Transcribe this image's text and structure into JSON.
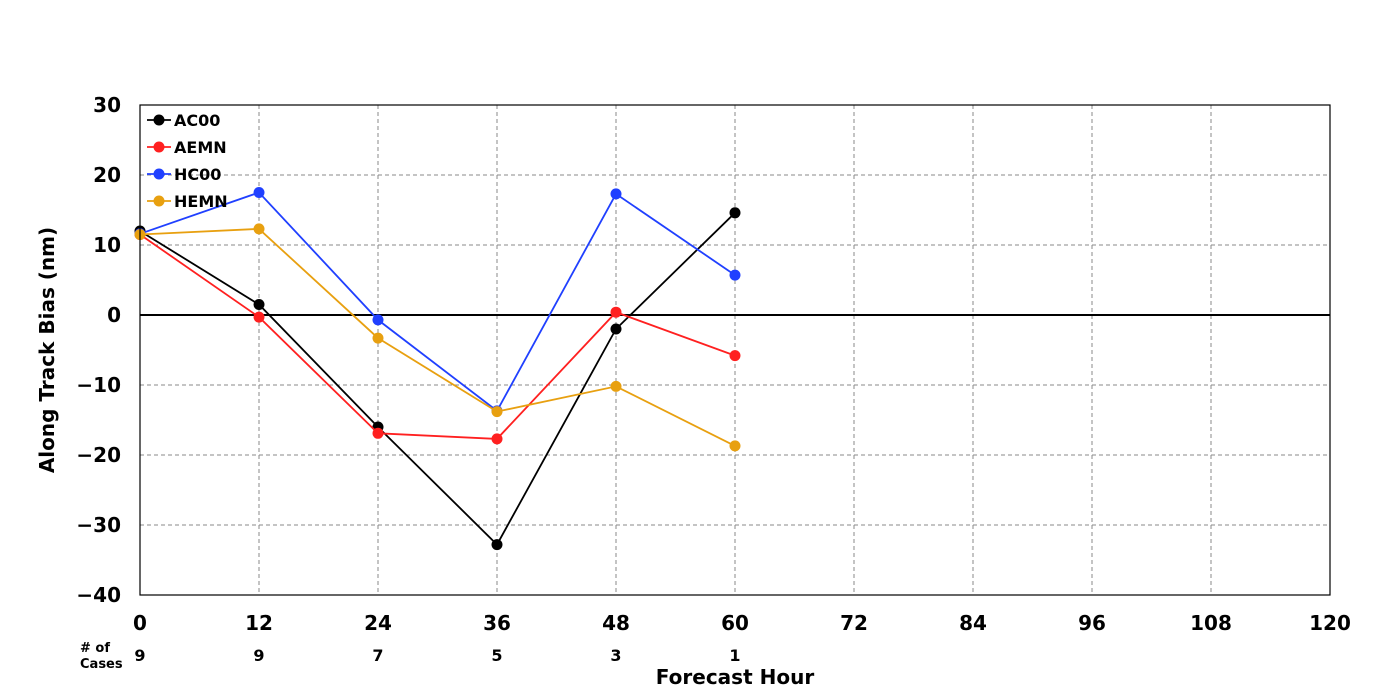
{
  "chart_data": {
    "type": "line",
    "xlabel": "Forecast Hour",
    "ylabel": "Along Track Bias (nm)",
    "xlim": [
      0,
      120
    ],
    "ylim": [
      -40,
      30
    ],
    "xticks": [
      0,
      12,
      24,
      36,
      48,
      60,
      72,
      84,
      96,
      108,
      120
    ],
    "yticks": [
      -40,
      -30,
      -20,
      -10,
      0,
      10,
      20,
      30
    ],
    "ytick_labels": [
      "−40",
      "−30",
      "−20",
      "−10",
      "0",
      "10",
      "20",
      "30"
    ],
    "grid": true,
    "zero_line": true,
    "legend_position": "top-left",
    "cases_label_line1": "# of",
    "cases_label_line2": "Cases",
    "cases": [
      {
        "x": 0,
        "count": "9"
      },
      {
        "x": 12,
        "count": "9"
      },
      {
        "x": 24,
        "count": "7"
      },
      {
        "x": 36,
        "count": "5"
      },
      {
        "x": 48,
        "count": "3"
      },
      {
        "x": 60,
        "count": "1"
      }
    ],
    "series": [
      {
        "name": "AC00",
        "color": "#000000",
        "x": [
          0,
          12,
          24,
          36,
          48,
          60
        ],
        "y": [
          12,
          1.5,
          -16,
          -32.8,
          -2,
          14.6
        ]
      },
      {
        "name": "AEMN",
        "color": "#ff2020",
        "x": [
          0,
          12,
          24,
          36,
          48,
          60
        ],
        "y": [
          11.5,
          -0.3,
          -16.9,
          -17.7,
          0.4,
          -5.8
        ]
      },
      {
        "name": "HC00",
        "color": "#2040ff",
        "x": [
          0,
          12,
          24,
          36,
          48,
          60
        ],
        "y": [
          11.6,
          17.5,
          -0.7,
          -13.7,
          17.3,
          5.7
        ]
      },
      {
        "name": "HEMN",
        "color": "#e8a010",
        "x": [
          0,
          12,
          24,
          36,
          48,
          60
        ],
        "y": [
          11.5,
          12.3,
          -3.3,
          -13.8,
          -10.2,
          -18.7
        ]
      }
    ]
  }
}
